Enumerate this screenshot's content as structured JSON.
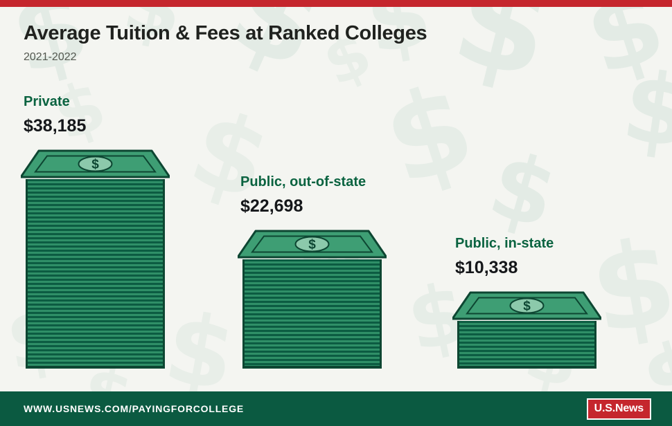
{
  "header": {
    "title": "Average Tuition & Fees at Ranked Colleges",
    "subtitle": "2021-2022"
  },
  "chart_data": {
    "type": "bar",
    "title": "Average Tuition & Fees at Ranked Colleges",
    "subtitle": "2021-2022",
    "categories": [
      "Private",
      "Public, out-of-state",
      "Public, in-state"
    ],
    "values": [
      38185,
      22698,
      10338
    ],
    "value_labels": [
      "$38,185",
      "$22,698",
      "$10,338"
    ],
    "ylim": [
      0,
      40000
    ],
    "grid": false,
    "legend": false,
    "bar_illustration": "stack-of-dollar-bills"
  },
  "footer": {
    "url": "WWW.USNEWS.COM/PAYINGFORCOLLEGE",
    "logo_text": "U.S.News"
  },
  "decor": {
    "dollar_symbol": "$"
  },
  "colors": {
    "accent_red": "#c5262d",
    "footer_green": "#0b5a41",
    "label_green": "#0a6340",
    "bill_outline": "#0d4632",
    "bill_stripe_dark": "#0c5c42",
    "bill_stripe_light": "#2f8f67",
    "bill_face": "#3e9e74",
    "background": "#f4f5f1"
  }
}
